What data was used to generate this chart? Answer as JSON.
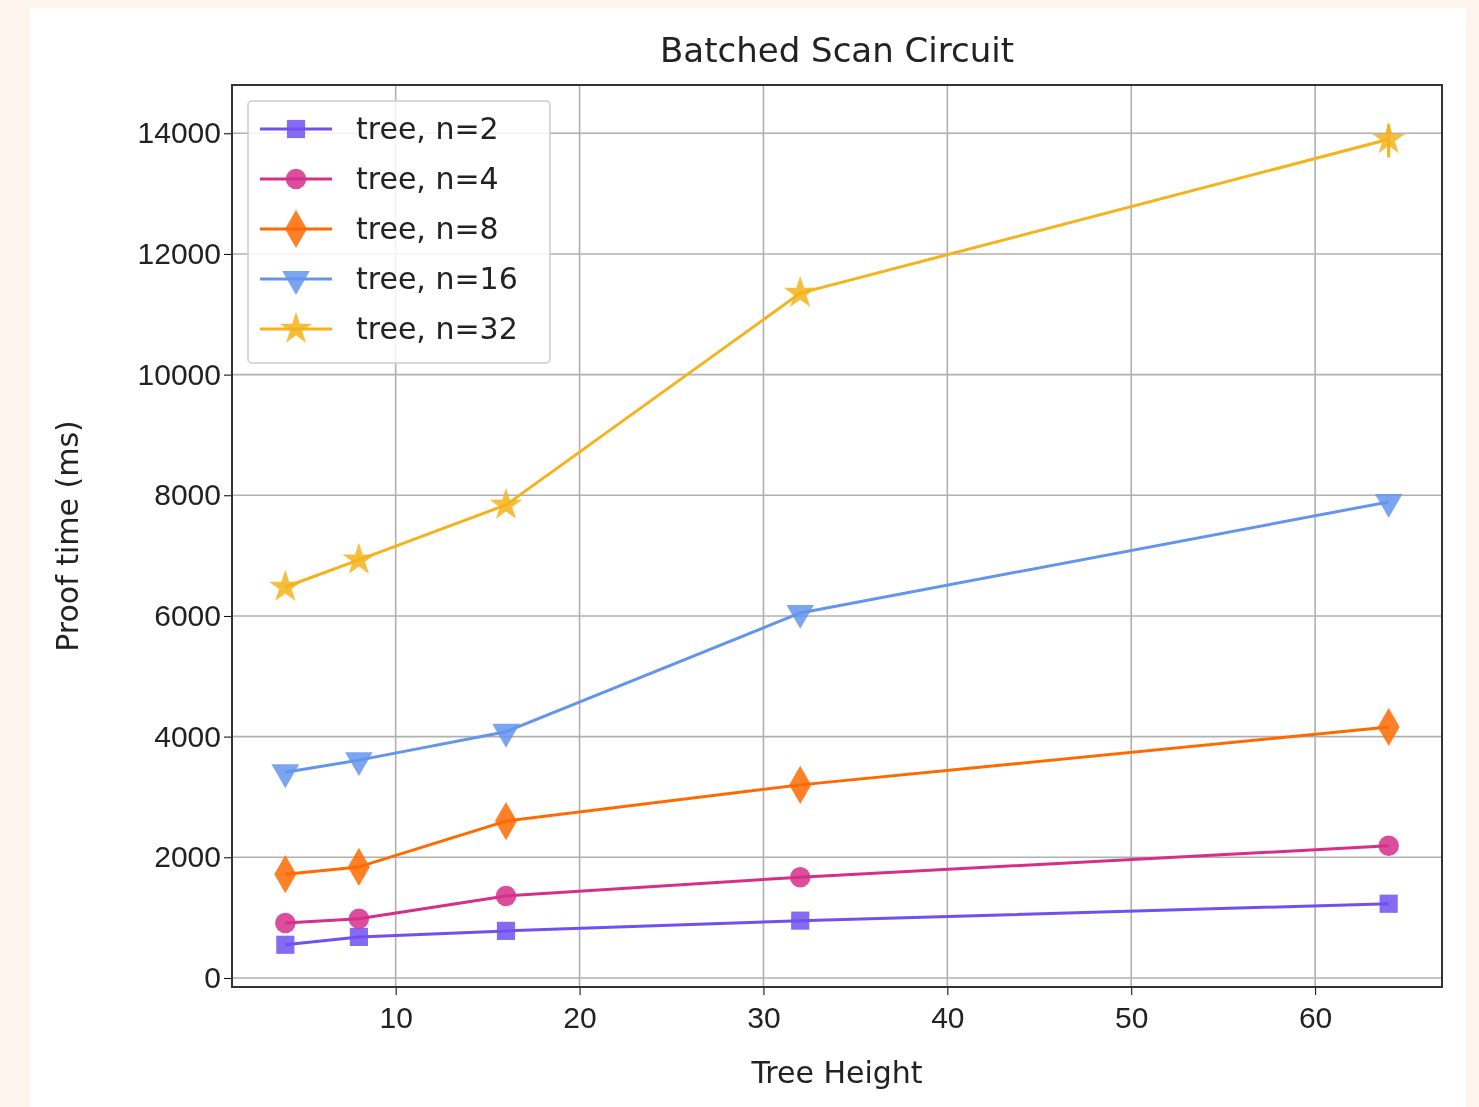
{
  "chart_data": {
    "type": "line",
    "title": "Batched Scan Circuit",
    "xlabel": "Tree Height",
    "ylabel": "Proof time (ms)",
    "x": [
      4,
      8,
      16,
      32,
      64
    ],
    "xlim": [
      1.1,
      66.9
    ],
    "xticks": [
      10,
      20,
      30,
      40,
      50,
      60
    ],
    "ylim": [
      -150,
      14800
    ],
    "yticks": [
      0,
      2000,
      4000,
      6000,
      8000,
      10000,
      12000,
      14000
    ],
    "grid": true,
    "legend": "top left",
    "series": [
      {
        "name": "tree, n=2",
        "color": "#7050f0",
        "marker": "square",
        "values": [
          550,
          680,
          780,
          950,
          1230
        ]
      },
      {
        "name": "tree, n=4",
        "color": "#d62f8a",
        "marker": "circle",
        "values": [
          910,
          980,
          1360,
          1670,
          2190
        ]
      },
      {
        "name": "tree, n=8",
        "color": "#ff6a00",
        "marker": "diamond",
        "values": [
          1720,
          1840,
          2600,
          3200,
          4160
        ]
      },
      {
        "name": "tree, n=16",
        "color": "#6495ed",
        "marker": "triangle",
        "values": [
          3410,
          3610,
          4080,
          6050,
          7890
        ]
      },
      {
        "name": "tree, n=32",
        "color": "#f5b31b",
        "marker": "star",
        "values": [
          6480,
          6930,
          7840,
          11350,
          13900
        ],
        "errors": [
          null,
          null,
          null,
          null,
          [
            13600,
            14150
          ]
        ]
      }
    ]
  }
}
